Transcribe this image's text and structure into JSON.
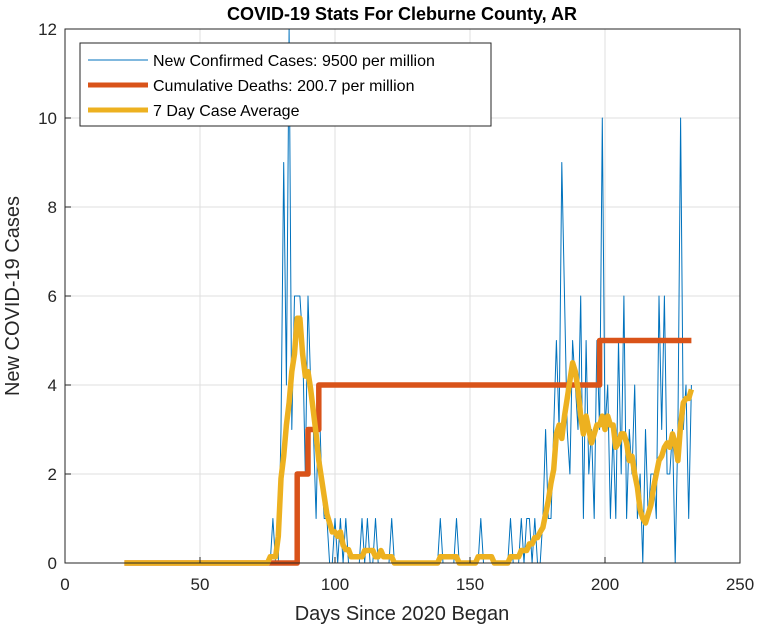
{
  "chart_data": {
    "type": "line",
    "title": "COVID-19 Stats For Cleburne County, AR",
    "xlabel": "Days Since 2020 Began",
    "ylabel": "New COVID-19 Cases",
    "xlim": [
      0,
      250
    ],
    "ylim": [
      0,
      12
    ],
    "xticks": [
      0,
      50,
      100,
      150,
      200,
      250
    ],
    "yticks": [
      0,
      2,
      4,
      6,
      8,
      10,
      12
    ],
    "grid": true,
    "legend_position": "top-left",
    "series": [
      {
        "name": "New Confirmed Cases: 9500 per million",
        "color": "#0072BD",
        "style": "thin",
        "points": [
          [
            22,
            0
          ],
          [
            30,
            0
          ],
          [
            40,
            0
          ],
          [
            50,
            0
          ],
          [
            60,
            0
          ],
          [
            70,
            0
          ],
          [
            75,
            0
          ],
          [
            76,
            0
          ],
          [
            77,
            1
          ],
          [
            78,
            0
          ],
          [
            79,
            0
          ],
          [
            80,
            3
          ],
          [
            81,
            9
          ],
          [
            82,
            4
          ],
          [
            83,
            12
          ],
          [
            84,
            3
          ],
          [
            85,
            6
          ],
          [
            86,
            6
          ],
          [
            87,
            6
          ],
          [
            88,
            5
          ],
          [
            89,
            2
          ],
          [
            90,
            6
          ],
          [
            91,
            4
          ],
          [
            92,
            3
          ],
          [
            93,
            1
          ],
          [
            94,
            4
          ],
          [
            95,
            2
          ],
          [
            96,
            1
          ],
          [
            97,
            1
          ],
          [
            98,
            0
          ],
          [
            99,
            0
          ],
          [
            100,
            1
          ],
          [
            101,
            0
          ],
          [
            102,
            1
          ],
          [
            103,
            0
          ],
          [
            104,
            1
          ],
          [
            105,
            0
          ],
          [
            106,
            0
          ],
          [
            107,
            0
          ],
          [
            108,
            0
          ],
          [
            109,
            0
          ],
          [
            110,
            1
          ],
          [
            111,
            0
          ],
          [
            112,
            1
          ],
          [
            113,
            0
          ],
          [
            114,
            0
          ],
          [
            115,
            1
          ],
          [
            116,
            0
          ],
          [
            117,
            0
          ],
          [
            118,
            0
          ],
          [
            119,
            0
          ],
          [
            120,
            0
          ],
          [
            121,
            1
          ],
          [
            122,
            0
          ],
          [
            123,
            0
          ],
          [
            124,
            0
          ],
          [
            125,
            0
          ],
          [
            126,
            0
          ],
          [
            127,
            0
          ],
          [
            128,
            0
          ],
          [
            129,
            0
          ],
          [
            130,
            0
          ],
          [
            131,
            0
          ],
          [
            132,
            0
          ],
          [
            133,
            0
          ],
          [
            134,
            0
          ],
          [
            135,
            0
          ],
          [
            136,
            0
          ],
          [
            137,
            0
          ],
          [
            138,
            0
          ],
          [
            139,
            1
          ],
          [
            140,
            0
          ],
          [
            141,
            0
          ],
          [
            142,
            0
          ],
          [
            143,
            0
          ],
          [
            144,
            0
          ],
          [
            145,
            1
          ],
          [
            146,
            0
          ],
          [
            147,
            0
          ],
          [
            148,
            0
          ],
          [
            149,
            0
          ],
          [
            150,
            0
          ],
          [
            151,
            0
          ],
          [
            152,
            0
          ],
          [
            153,
            0
          ],
          [
            154,
            1
          ],
          [
            155,
            0
          ],
          [
            156,
            0
          ],
          [
            157,
            0
          ],
          [
            158,
            0
          ],
          [
            159,
            0
          ],
          [
            160,
            0
          ],
          [
            161,
            0
          ],
          [
            162,
            0
          ],
          [
            163,
            0
          ],
          [
            164,
            0
          ],
          [
            165,
            1
          ],
          [
            166,
            0
          ],
          [
            167,
            0
          ],
          [
            168,
            0
          ],
          [
            169,
            1
          ],
          [
            170,
            0
          ],
          [
            171,
            1
          ],
          [
            172,
            1
          ],
          [
            173,
            0
          ],
          [
            174,
            1
          ],
          [
            175,
            0
          ],
          [
            176,
            0
          ],
          [
            177,
            1
          ],
          [
            178,
            3
          ],
          [
            179,
            1
          ],
          [
            180,
            1
          ],
          [
            181,
            3
          ],
          [
            182,
            5
          ],
          [
            183,
            3
          ],
          [
            184,
            9
          ],
          [
            185,
            6
          ],
          [
            186,
            3
          ],
          [
            187,
            2
          ],
          [
            188,
            5
          ],
          [
            189,
            4
          ],
          [
            190,
            3
          ],
          [
            191,
            6
          ],
          [
            192,
            1
          ],
          [
            193,
            5
          ],
          [
            194,
            2
          ],
          [
            195,
            3
          ],
          [
            196,
            1
          ],
          [
            197,
            5
          ],
          [
            198,
            3
          ],
          [
            199,
            10
          ],
          [
            200,
            3
          ],
          [
            201,
            4
          ],
          [
            202,
            1
          ],
          [
            203,
            3
          ],
          [
            204,
            1
          ],
          [
            205,
            5
          ],
          [
            206,
            2
          ],
          [
            207,
            6
          ],
          [
            208,
            1
          ],
          [
            209,
            3
          ],
          [
            210,
            2
          ],
          [
            211,
            4
          ],
          [
            212,
            1
          ],
          [
            213,
            2
          ],
          [
            214,
            0
          ],
          [
            215,
            3
          ],
          [
            216,
            1
          ],
          [
            217,
            2
          ],
          [
            218,
            2
          ],
          [
            219,
            1
          ],
          [
            220,
            6
          ],
          [
            221,
            3
          ],
          [
            222,
            6
          ],
          [
            223,
            2
          ],
          [
            224,
            2
          ],
          [
            225,
            3
          ],
          [
            226,
            0
          ],
          [
            227,
            3
          ],
          [
            228,
            10
          ],
          [
            229,
            3
          ],
          [
            230,
            4
          ],
          [
            231,
            1
          ],
          [
            232,
            4
          ]
        ]
      },
      {
        "name": "Cumulative Deaths: 200.7 per million",
        "color": "#D95319",
        "style": "thick",
        "points": [
          [
            22,
            0
          ],
          [
            86,
            0
          ],
          [
            86,
            2
          ],
          [
            90,
            2
          ],
          [
            90,
            3
          ],
          [
            94,
            3
          ],
          [
            94,
            4
          ],
          [
            198,
            4
          ],
          [
            198,
            5
          ],
          [
            232,
            5
          ]
        ]
      },
      {
        "name": "7 Day Case Average",
        "color": "#EDB120",
        "style": "thick",
        "points": [
          [
            22,
            0
          ],
          [
            70,
            0
          ],
          [
            75,
            0
          ],
          [
            76,
            0.14
          ],
          [
            77,
            0.14
          ],
          [
            78,
            0.14
          ],
          [
            79,
            0.6
          ],
          [
            80,
            1.9
          ],
          [
            81,
            2.4
          ],
          [
            82,
            3.1
          ],
          [
            83,
            3.6
          ],
          [
            84,
            4.3
          ],
          [
            85,
            4.7
          ],
          [
            86,
            5.5
          ],
          [
            87,
            5.5
          ],
          [
            88,
            4.7
          ],
          [
            89,
            4.2
          ],
          [
            90,
            4.3
          ],
          [
            91,
            3.9
          ],
          [
            92,
            3.4
          ],
          [
            93,
            2.9
          ],
          [
            94,
            2.3
          ],
          [
            95,
            1.9
          ],
          [
            96,
            1.5
          ],
          [
            97,
            1.1
          ],
          [
            98,
            0.9
          ],
          [
            99,
            0.7
          ],
          [
            100,
            0.7
          ],
          [
            101,
            0.6
          ],
          [
            102,
            0.7
          ],
          [
            103,
            0.4
          ],
          [
            104,
            0.3
          ],
          [
            105,
            0.3
          ],
          [
            106,
            0.14
          ],
          [
            107,
            0.14
          ],
          [
            108,
            0.14
          ],
          [
            109,
            0.14
          ],
          [
            110,
            0.14
          ],
          [
            111,
            0.28
          ],
          [
            112,
            0.28
          ],
          [
            113,
            0.28
          ],
          [
            114,
            0.28
          ],
          [
            115,
            0.14
          ],
          [
            116,
            0.14
          ],
          [
            117,
            0.28
          ],
          [
            118,
            0.14
          ],
          [
            119,
            0.14
          ],
          [
            120,
            0.14
          ],
          [
            121,
            0.14
          ],
          [
            122,
            0
          ],
          [
            130,
            0
          ],
          [
            138,
            0
          ],
          [
            139,
            0.14
          ],
          [
            140,
            0.14
          ],
          [
            145,
            0.14
          ],
          [
            146,
            0
          ],
          [
            152,
            0
          ],
          [
            153,
            0.14
          ],
          [
            158,
            0.14
          ],
          [
            159,
            0
          ],
          [
            164,
            0
          ],
          [
            165,
            0.14
          ],
          [
            166,
            0.14
          ],
          [
            168,
            0.14
          ],
          [
            169,
            0.28
          ],
          [
            170,
            0.28
          ],
          [
            171,
            0.28
          ],
          [
            172,
            0.43
          ],
          [
            173,
            0.43
          ],
          [
            174,
            0.57
          ],
          [
            175,
            0.57
          ],
          [
            176,
            0.7
          ],
          [
            177,
            0.8
          ],
          [
            178,
            1.1
          ],
          [
            179,
            1.4
          ],
          [
            180,
            1.8
          ],
          [
            181,
            2.1
          ],
          [
            182,
            2.9
          ],
          [
            183,
            3.1
          ],
          [
            184,
            2.8
          ],
          [
            185,
            3.3
          ],
          [
            186,
            3.7
          ],
          [
            187,
            4.1
          ],
          [
            188,
            4.5
          ],
          [
            189,
            4.3
          ],
          [
            190,
            3.9
          ],
          [
            191,
            3.3
          ],
          [
            192,
            2.9
          ],
          [
            193,
            3.3
          ],
          [
            194,
            3.0
          ],
          [
            195,
            2.7
          ],
          [
            196,
            2.9
          ],
          [
            197,
            3.1
          ],
          [
            198,
            3.1
          ],
          [
            199,
            3.3
          ],
          [
            200,
            3.0
          ],
          [
            201,
            3.3
          ],
          [
            202,
            3.1
          ],
          [
            203,
            3.1
          ],
          [
            204,
            2.6
          ],
          [
            205,
            2.7
          ],
          [
            206,
            2.9
          ],
          [
            207,
            2.9
          ],
          [
            208,
            2.7
          ],
          [
            209,
            2.3
          ],
          [
            210,
            2.4
          ],
          [
            211,
            2.0
          ],
          [
            212,
            1.7
          ],
          [
            213,
            1.2
          ],
          [
            214,
            1.0
          ],
          [
            215,
            0.9
          ],
          [
            216,
            1.1
          ],
          [
            217,
            1.3
          ],
          [
            218,
            1.7
          ],
          [
            219,
            2.0
          ],
          [
            220,
            2.3
          ],
          [
            221,
            2.4
          ],
          [
            222,
            2.6
          ],
          [
            223,
            2.7
          ],
          [
            224,
            2.6
          ],
          [
            225,
            2.9
          ],
          [
            226,
            2.7
          ],
          [
            227,
            2.3
          ],
          [
            228,
            3.1
          ],
          [
            229,
            3.6
          ],
          [
            230,
            3.7
          ],
          [
            231,
            3.7
          ],
          [
            232,
            3.9
          ]
        ]
      }
    ]
  }
}
